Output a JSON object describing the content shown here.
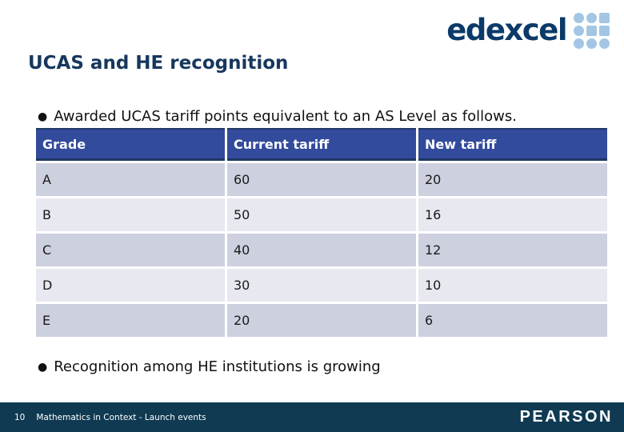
{
  "logo": {
    "edexcel_text": "edexcel",
    "dot_grid": [
      "circle",
      "circle",
      "square",
      "circle",
      "square",
      "square",
      "circle",
      "circle",
      "circle"
    ]
  },
  "slide": {
    "title": "UCAS and HE recognition",
    "bullet1": "Awarded UCAS tariff points equivalent to an AS Level as follows.",
    "bullet2": "Recognition among HE institutions is growing"
  },
  "table": {
    "headers": [
      "Grade",
      "Current tariff",
      "New tariff"
    ],
    "rows": [
      [
        "A",
        "60",
        "20"
      ],
      [
        "B",
        "50",
        "16"
      ],
      [
        "C",
        "40",
        "12"
      ],
      [
        "D",
        "30",
        "10"
      ],
      [
        "E",
        "20",
        "6"
      ]
    ]
  },
  "footer": {
    "page_number": "10",
    "text": "Mathematics in Context - Launch events",
    "pearson_text": "PEARSON"
  },
  "colors": {
    "title_navy": "#17375E",
    "table_header_bg": "#334B9C",
    "table_header_border": "#1F3864",
    "row_dark": "#CDD0DF",
    "row_light": "#E7E8F0",
    "footer_bg": "#0F3A52",
    "edexcel_navy": "#0B3A69",
    "logo_dot_blue": "#A3C6E4"
  }
}
